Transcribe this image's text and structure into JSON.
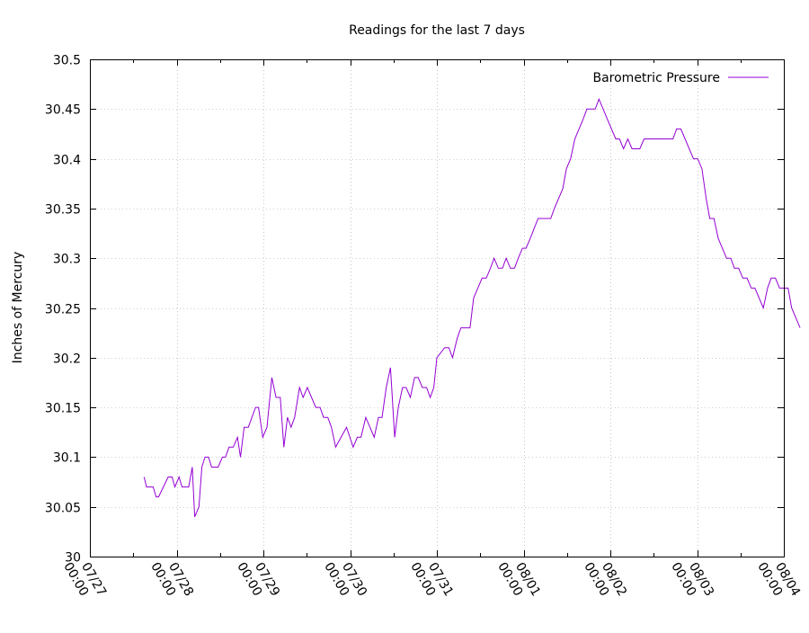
{
  "chart_data": {
    "type": "line",
    "title": "Readings for the last 7 days",
    "ylabel": "Inches of Mercury",
    "xlabel": "",
    "ylim": [
      30,
      30.5
    ],
    "xlim": [
      "07/27 00:00",
      "08/04 00:00"
    ],
    "y_ticks": [
      "30",
      "30.05",
      "30.1",
      "30.15",
      "30.2",
      "30.25",
      "30.3",
      "30.35",
      "30.4",
      "30.45",
      "30.5"
    ],
    "x_ticks": [
      {
        "line1": "07/27",
        "line2": "00:00"
      },
      {
        "line1": "07/28",
        "line2": "00:00"
      },
      {
        "line1": "07/29",
        "line2": "00:00"
      },
      {
        "line1": "07/30",
        "line2": "00:00"
      },
      {
        "line1": "07/31",
        "line2": "00:00"
      },
      {
        "line1": "08/01",
        "line2": "00:00"
      },
      {
        "line1": "08/02",
        "line2": "00:00"
      },
      {
        "line1": "08/03",
        "line2": "00:00"
      },
      {
        "line1": "08/04",
        "line2": "00:00"
      }
    ],
    "grid": true,
    "legend": "top-right",
    "series": [
      {
        "name": "Barometric Pressure",
        "color": "#9400d3",
        "points": [
          [
            "07/27 15:00",
            30.08
          ],
          [
            "07/27 15:40",
            30.07
          ],
          [
            "07/27 17:30",
            30.07
          ],
          [
            "07/27 18:20",
            30.06
          ],
          [
            "07/27 19:00",
            30.06
          ],
          [
            "07/27 21:40",
            30.08
          ],
          [
            "07/27 22:45",
            30.08
          ],
          [
            "07/27 23:30",
            30.07
          ],
          [
            "07/28 00:40",
            30.08
          ],
          [
            "07/28 01:30",
            30.07
          ],
          [
            "07/28 03:20",
            30.07
          ],
          [
            "07/28 04:20",
            30.09
          ],
          [
            "07/28 05:00",
            30.04
          ],
          [
            "07/28 06:10",
            30.05
          ],
          [
            "07/28 07:00",
            30.09
          ],
          [
            "07/28 07:50",
            30.1
          ],
          [
            "07/28 08:50",
            30.1
          ],
          [
            "07/28 09:40",
            30.09
          ],
          [
            "07/28 11:30",
            30.09
          ],
          [
            "07/28 12:40",
            30.1
          ],
          [
            "07/28 13:30",
            30.1
          ],
          [
            "07/28 14:30",
            30.11
          ],
          [
            "07/28 15:40",
            30.11
          ],
          [
            "07/28 16:50",
            30.12
          ],
          [
            "07/28 17:40",
            30.1
          ],
          [
            "07/28 18:40",
            30.13
          ],
          [
            "07/28 19:50",
            30.13
          ],
          [
            "07/28 21:50",
            30.15
          ],
          [
            "07/28 22:40",
            30.15
          ],
          [
            "07/28 23:50",
            30.12
          ],
          [
            "07/29 01:00",
            30.13
          ],
          [
            "07/29 02:20",
            30.18
          ],
          [
            "07/29 03:30",
            30.16
          ],
          [
            "07/29 04:40",
            30.16
          ],
          [
            "07/29 05:40",
            30.11
          ],
          [
            "07/29 06:40",
            30.14
          ],
          [
            "07/29 07:40",
            30.13
          ],
          [
            "07/29 08:40",
            30.14
          ],
          [
            "07/29 10:00",
            30.17
          ],
          [
            "07/29 11:00",
            30.16
          ],
          [
            "07/29 12:10",
            30.17
          ],
          [
            "07/29 14:30",
            30.15
          ],
          [
            "07/29 15:40",
            30.15
          ],
          [
            "07/29 16:40",
            30.14
          ],
          [
            "07/29 17:50",
            30.14
          ],
          [
            "07/29 18:50",
            30.13
          ],
          [
            "07/29 20:00",
            30.11
          ],
          [
            "07/29 23:00",
            30.13
          ],
          [
            "07/30 00:50",
            30.11
          ],
          [
            "07/30 02:00",
            30.12
          ],
          [
            "07/30 03:00",
            30.12
          ],
          [
            "07/30 04:20",
            30.14
          ],
          [
            "07/30 06:40",
            30.12
          ],
          [
            "07/30 07:50",
            30.14
          ],
          [
            "07/30 08:50",
            30.14
          ],
          [
            "07/30 10:00",
            30.17
          ],
          [
            "07/30 11:10",
            30.19
          ],
          [
            "07/30 12:20",
            30.12
          ],
          [
            "07/30 13:20",
            30.15
          ],
          [
            "07/30 14:30",
            30.17
          ],
          [
            "07/30 15:30",
            30.17
          ],
          [
            "07/30 16:40",
            30.16
          ],
          [
            "07/30 17:50",
            30.18
          ],
          [
            "07/30 18:50",
            30.18
          ],
          [
            "07/30 20:00",
            30.17
          ],
          [
            "07/30 21:10",
            30.17
          ],
          [
            "07/30 22:10",
            30.16
          ],
          [
            "07/30 23:10",
            30.17
          ],
          [
            "07/31 00:00",
            30.2
          ],
          [
            "07/31 02:10",
            30.21
          ],
          [
            "07/31 03:20",
            30.21
          ],
          [
            "07/31 04:20",
            30.2
          ],
          [
            "07/31 05:40",
            30.22
          ],
          [
            "07/31 06:40",
            30.23
          ],
          [
            "07/31 08:00",
            30.23
          ],
          [
            "07/31 09:10",
            30.23
          ],
          [
            "07/31 10:10",
            30.26
          ],
          [
            "07/31 11:20",
            30.27
          ],
          [
            "07/31 12:30",
            30.28
          ],
          [
            "07/31 13:40",
            30.28
          ],
          [
            "07/31 14:50",
            30.29
          ],
          [
            "07/31 15:50",
            30.3
          ],
          [
            "07/31 17:00",
            30.29
          ],
          [
            "07/31 18:10",
            30.29
          ],
          [
            "07/31 19:10",
            30.3
          ],
          [
            "07/31 20:20",
            30.29
          ],
          [
            "07/31 21:30",
            30.29
          ],
          [
            "07/31 22:30",
            30.3
          ],
          [
            "07/31 23:40",
            30.31
          ],
          [
            "08/01 00:40",
            30.31
          ],
          [
            "08/01 01:50",
            30.32
          ],
          [
            "08/01 04:00",
            30.34
          ],
          [
            "08/01 05:10",
            30.34
          ],
          [
            "08/01 07:30",
            30.34
          ],
          [
            "08/01 08:30",
            30.35
          ],
          [
            "08/01 10:50",
            30.37
          ],
          [
            "08/01 11:50",
            30.39
          ],
          [
            "08/01 13:00",
            30.4
          ],
          [
            "08/01 14:10",
            30.42
          ],
          [
            "08/01 16:30",
            30.44
          ],
          [
            "08/01 17:30",
            30.45
          ],
          [
            "08/01 19:50",
            30.45
          ],
          [
            "08/01 20:50",
            30.46
          ],
          [
            "08/01 22:00",
            30.45
          ],
          [
            "08/01 23:10",
            30.44
          ],
          [
            "08/02 01:30",
            30.42
          ],
          [
            "08/02 02:30",
            30.42
          ],
          [
            "08/02 03:40",
            30.41
          ],
          [
            "08/02 04:50",
            30.42
          ],
          [
            "08/02 06:00",
            30.41
          ],
          [
            "08/02 07:00",
            30.41
          ],
          [
            "08/02 08:10",
            30.41
          ],
          [
            "08/02 09:20",
            30.42
          ],
          [
            "08/02 13:50",
            30.42
          ],
          [
            "08/02 15:00",
            30.42
          ],
          [
            "08/02 17:20",
            30.42
          ],
          [
            "08/02 18:20",
            30.43
          ],
          [
            "08/02 19:30",
            30.43
          ],
          [
            "08/02 20:40",
            30.42
          ],
          [
            "08/02 23:00",
            30.4
          ],
          [
            "08/03 00:10",
            30.4
          ],
          [
            "08/03 01:20",
            30.39
          ],
          [
            "08/03 02:30",
            30.36
          ],
          [
            "08/03 03:30",
            30.34
          ],
          [
            "08/03 04:40",
            30.34
          ],
          [
            "08/03 05:50",
            30.32
          ],
          [
            "08/03 07:00",
            30.31
          ],
          [
            "08/03 08:10",
            30.3
          ],
          [
            "08/03 09:20",
            30.3
          ],
          [
            "08/03 10:20",
            30.29
          ],
          [
            "08/03 11:30",
            30.29
          ],
          [
            "08/03 12:40",
            30.28
          ],
          [
            "08/03 13:50",
            30.28
          ],
          [
            "08/03 15:00",
            30.27
          ],
          [
            "08/03 16:00",
            30.27
          ],
          [
            "08/03 18:20",
            30.25
          ],
          [
            "08/03 19:30",
            30.27
          ],
          [
            "08/03 20:30",
            30.28
          ],
          [
            "08/03 21:40",
            30.28
          ],
          [
            "08/03 22:50",
            30.27
          ],
          [
            "08/04 01:10",
            30.27
          ],
          [
            "08/04 02:10",
            30.25
          ],
          [
            "08/04 04:30",
            30.23
          ]
        ]
      }
    ]
  }
}
